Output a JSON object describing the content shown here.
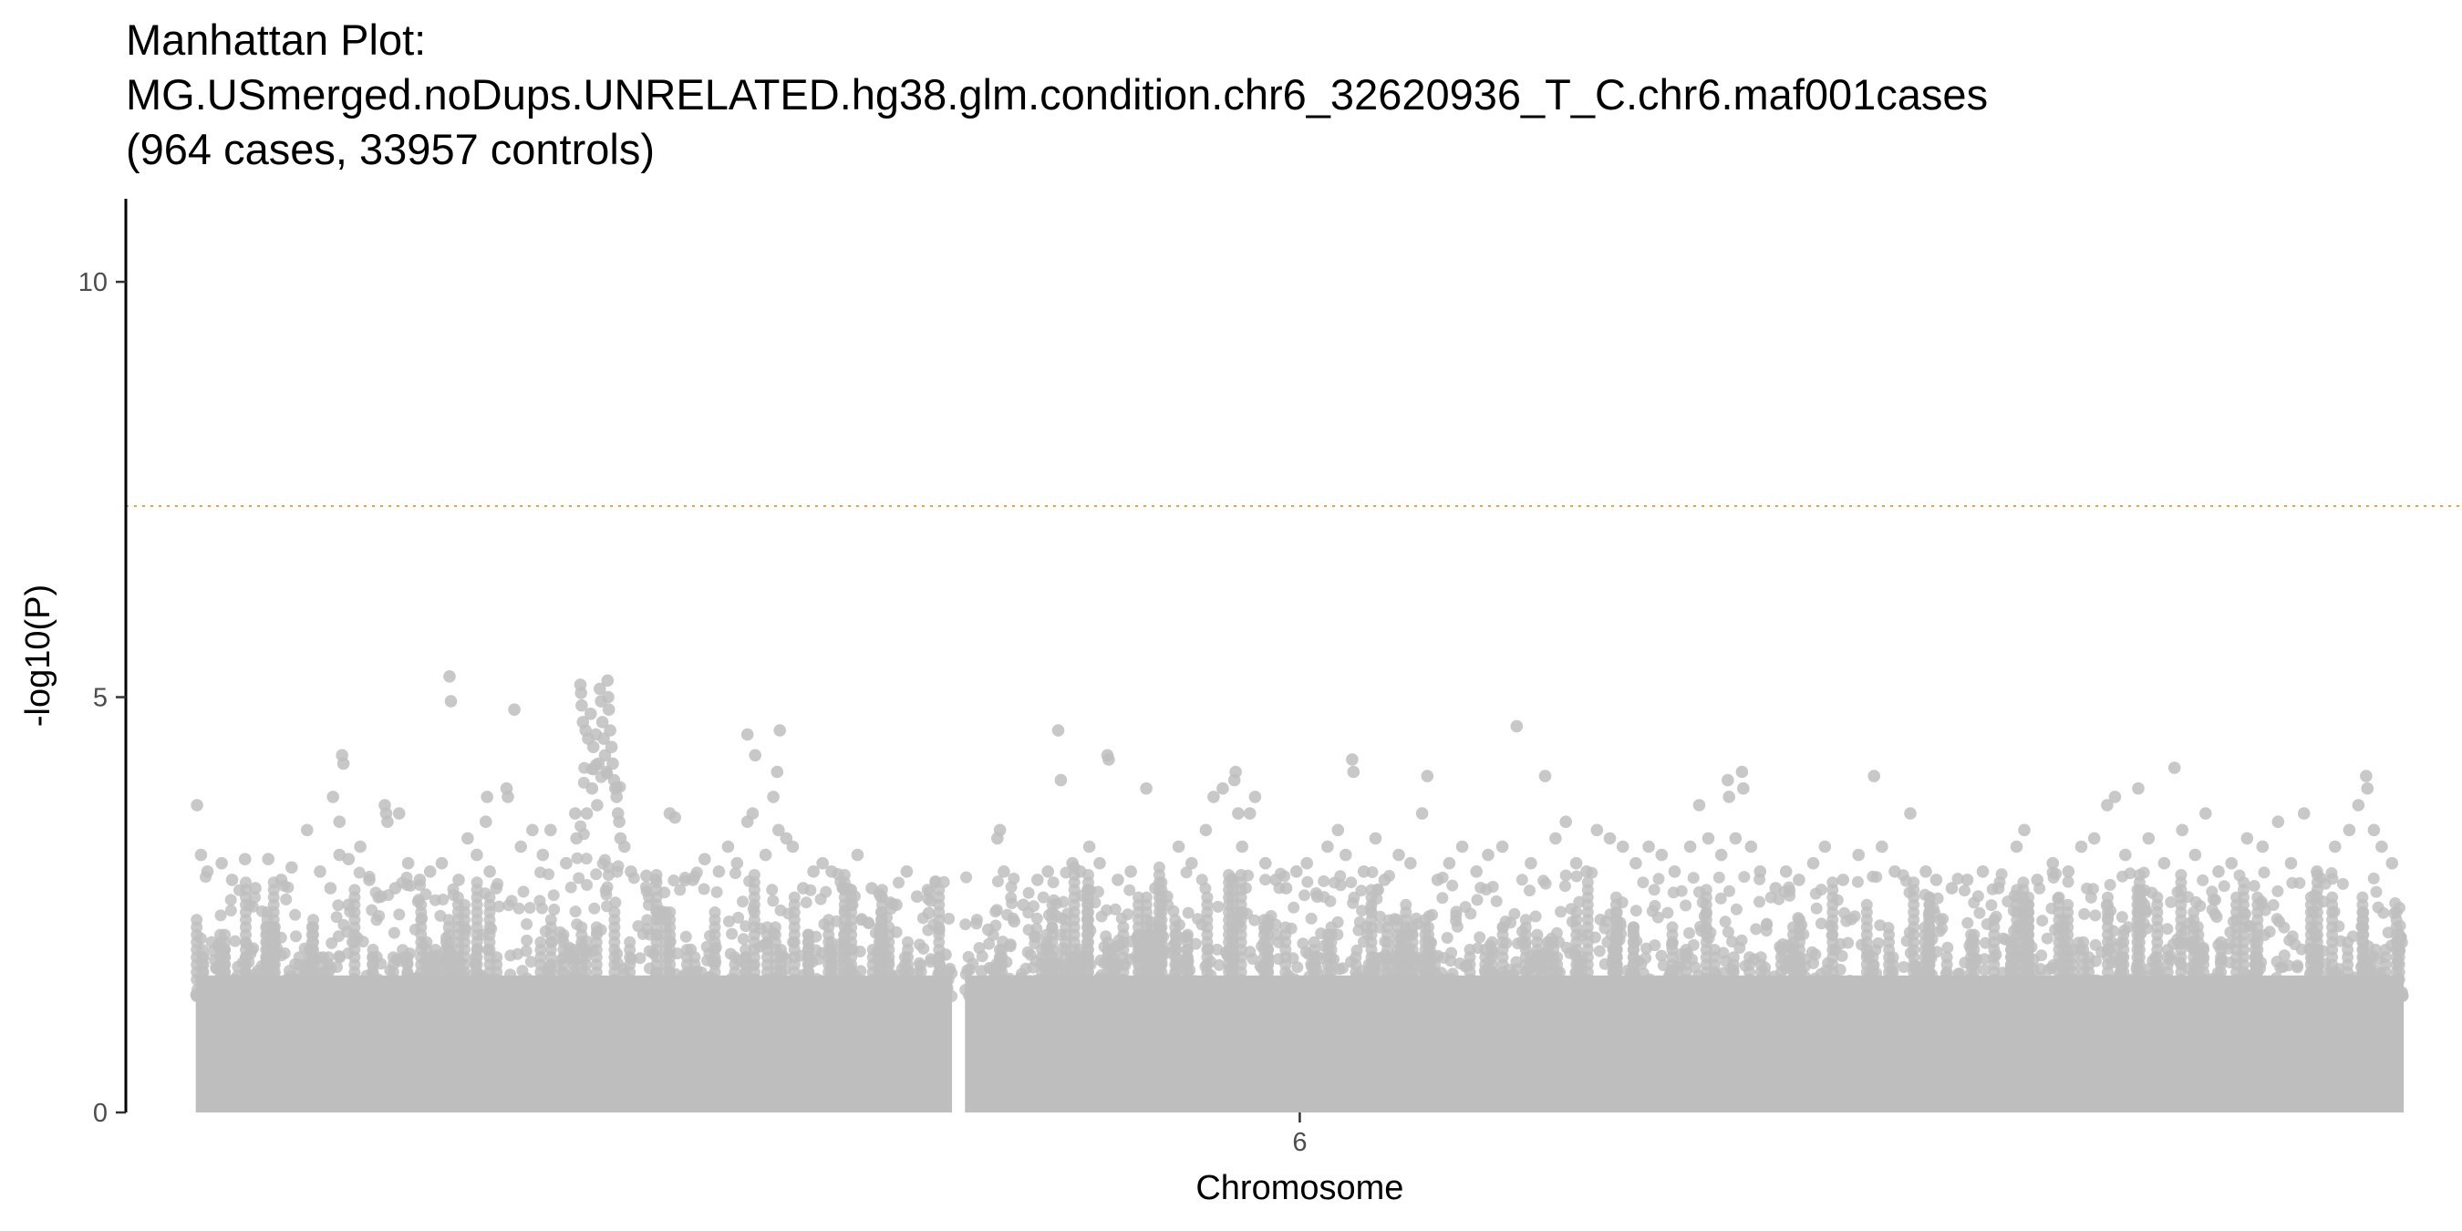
{
  "chart_data": {
    "type": "scatter",
    "title_lines": [
      "Manhattan Plot:",
      "MG.USmerged.noDups.UNRELATED.hg38.glm.condition.chr6_32620936_T_C.chr6.maf001cases",
      "(964 cases, 33957 controls)"
    ],
    "xlabel": "Chromosome",
    "ylabel": "-log10(P)",
    "x_tick_labels": [
      "6"
    ],
    "y_ticks": [
      0,
      5,
      10
    ],
    "y_tick_labels": [
      "0",
      "5",
      "10"
    ],
    "ylim": [
      0,
      11
    ],
    "xlim_mb": [
      -5.2,
      175.2
    ],
    "chromosome_range_mb": [
      0.2,
      170.7
    ],
    "gap_mb": [
      58.6,
      59.6
    ],
    "significance_threshold": 7.3,
    "point_color": "#bebebe",
    "threshold_color": "#e8a33d",
    "grid": false,
    "legend": "none",
    "points_mb": [
      [
        0.3,
        3.7
      ],
      [
        0.6,
        3.1
      ],
      [
        1.1,
        2.9
      ],
      [
        2.2,
        3.0
      ],
      [
        3.0,
        2.8
      ],
      [
        4.0,
        3.05
      ],
      [
        4.8,
        2.7
      ],
      [
        5.8,
        3.05
      ],
      [
        6.8,
        2.8
      ],
      [
        7.6,
        2.95
      ],
      [
        8.8,
        3.4
      ],
      [
        9.8,
        2.9
      ],
      [
        10.6,
        2.7
      ],
      [
        11.3,
        3.1
      ],
      [
        12.0,
        2.5
      ],
      [
        12.9,
        3.2
      ],
      [
        13.6,
        2.8
      ],
      [
        14.5,
        2.6
      ],
      [
        15.6,
        2.7
      ],
      [
        10.8,
        3.8
      ],
      [
        11.5,
        4.3
      ],
      [
        11.6,
        4.2
      ],
      [
        11.3,
        3.5
      ],
      [
        12.0,
        3.05
      ],
      [
        14.8,
        3.7
      ],
      [
        14.9,
        3.6
      ],
      [
        15.0,
        3.5
      ],
      [
        15.9,
        3.6
      ],
      [
        16.6,
        3.0
      ],
      [
        17.5,
        2.8
      ],
      [
        18.3,
        2.9
      ],
      [
        19.2,
        3.0
      ],
      [
        19.8,
        5.25
      ],
      [
        19.9,
        4.95
      ],
      [
        20.5,
        2.8
      ],
      [
        21.2,
        3.3
      ],
      [
        21.9,
        3.1
      ],
      [
        22.6,
        3.5
      ],
      [
        22.7,
        3.8
      ],
      [
        22.9,
        2.9
      ],
      [
        23.4,
        2.7
      ],
      [
        24.2,
        3.9
      ],
      [
        24.3,
        3.8
      ],
      [
        24.8,
        4.85
      ],
      [
        25.3,
        3.2
      ],
      [
        26.2,
        3.4
      ],
      [
        27.0,
        3.1
      ],
      [
        27.6,
        3.4
      ],
      [
        28.8,
        3.0
      ],
      [
        29.5,
        3.6
      ],
      [
        29.6,
        3.3
      ],
      [
        29.9,
        5.15
      ],
      [
        29.95,
        5.05
      ],
      [
        30.0,
        4.9
      ],
      [
        30.1,
        4.7
      ],
      [
        30.3,
        4.6
      ],
      [
        30.5,
        4.5
      ],
      [
        30.7,
        4.8
      ],
      [
        30.9,
        4.4
      ],
      [
        31.1,
        4.55
      ],
      [
        31.3,
        4.2
      ],
      [
        31.4,
        5.1
      ],
      [
        31.5,
        4.95
      ],
      [
        31.6,
        4.7
      ],
      [
        31.7,
        4.5
      ],
      [
        31.8,
        4.3
      ],
      [
        31.9,
        4.1
      ],
      [
        32.0,
        5.2
      ],
      [
        32.05,
        5.0
      ],
      [
        32.1,
        4.85
      ],
      [
        32.2,
        4.6
      ],
      [
        32.3,
        4.4
      ],
      [
        32.4,
        4.2
      ],
      [
        32.5,
        4.0
      ],
      [
        32.6,
        3.9
      ],
      [
        32.7,
        3.8
      ],
      [
        32.8,
        3.6
      ],
      [
        32.9,
        3.5
      ],
      [
        33.0,
        3.3
      ],
      [
        30.4,
        3.6
      ],
      [
        30.8,
        3.9
      ],
      [
        31.2,
        3.7
      ],
      [
        33.3,
        3.2
      ],
      [
        33.8,
        2.9
      ],
      [
        35.0,
        2.85
      ],
      [
        36.8,
        3.6
      ],
      [
        37.2,
        3.55
      ],
      [
        38.6,
        2.8
      ],
      [
        39.5,
        3.05
      ],
      [
        40.6,
        2.9
      ],
      [
        41.3,
        3.2
      ],
      [
        42.0,
        3.0
      ],
      [
        42.8,
        4.55
      ],
      [
        43.4,
        4.3
      ],
      [
        42.8,
        3.5
      ],
      [
        43.2,
        3.6
      ],
      [
        44.2,
        3.1
      ],
      [
        44.8,
        3.8
      ],
      [
        45.1,
        4.1
      ],
      [
        45.2,
        3.4
      ],
      [
        45.3,
        4.6
      ],
      [
        45.8,
        3.3
      ],
      [
        46.3,
        3.2
      ],
      [
        47.1,
        2.7
      ],
      [
        47.9,
        2.9
      ],
      [
        48.6,
        3.0
      ],
      [
        49.3,
        2.9
      ],
      [
        50.2,
        2.7
      ],
      [
        50.9,
        2.5
      ],
      [
        51.3,
        3.1
      ],
      [
        52.4,
        2.7
      ],
      [
        53.1,
        2.6
      ],
      [
        54.3,
        2.5
      ],
      [
        55.1,
        2.9
      ],
      [
        55.9,
        2.6
      ],
      [
        56.8,
        2.4
      ],
      [
        57.6,
        2.2
      ],
      [
        58.1,
        1.9
      ],
      [
        58.3,
        1.6
      ],
      [
        60.1,
        1.35
      ],
      [
        60.9,
        1.7
      ],
      [
        61.4,
        2.2
      ],
      [
        62.1,
        3.3
      ],
      [
        62.3,
        3.4
      ],
      [
        62.6,
        2.9
      ],
      [
        63.4,
        2.3
      ],
      [
        64.1,
        2.5
      ],
      [
        65.2,
        2.8
      ],
      [
        66.0,
        2.9
      ],
      [
        66.8,
        4.6
      ],
      [
        67.0,
        4.0
      ],
      [
        67.9,
        3.0
      ],
      [
        68.5,
        2.9
      ],
      [
        69.2,
        3.2
      ],
      [
        70.0,
        3.0
      ],
      [
        70.6,
        4.3
      ],
      [
        70.7,
        4.25
      ],
      [
        71.4,
        2.8
      ],
      [
        72.4,
        2.9
      ],
      [
        73.6,
        3.9
      ],
      [
        74.3,
        2.7
      ],
      [
        75.2,
        2.6
      ],
      [
        76.1,
        3.2
      ],
      [
        77.1,
        3.0
      ],
      [
        78.2,
        3.4
      ],
      [
        78.8,
        3.8
      ],
      [
        79.5,
        3.9
      ],
      [
        80.4,
        4.0
      ],
      [
        80.5,
        4.1
      ],
      [
        80.7,
        3.6
      ],
      [
        81.0,
        3.2
      ],
      [
        81.6,
        3.6
      ],
      [
        82.0,
        3.8
      ],
      [
        82.8,
        3.0
      ],
      [
        83.6,
        2.8
      ],
      [
        84.4,
        2.7
      ],
      [
        85.2,
        2.9
      ],
      [
        86.0,
        3.0
      ],
      [
        86.8,
        2.6
      ],
      [
        87.6,
        3.2
      ],
      [
        88.4,
        3.4
      ],
      [
        89.0,
        3.1
      ],
      [
        89.5,
        4.25
      ],
      [
        89.6,
        4.1
      ],
      [
        90.4,
        2.9
      ],
      [
        91.3,
        3.3
      ],
      [
        92.0,
        2.8
      ],
      [
        93.1,
        3.1
      ],
      [
        94.0,
        3.0
      ],
      [
        94.9,
        3.6
      ],
      [
        95.3,
        4.05
      ],
      [
        96.1,
        2.8
      ],
      [
        97.0,
        3.0
      ],
      [
        98.0,
        3.2
      ],
      [
        99.1,
        2.9
      ],
      [
        100.0,
        3.1
      ],
      [
        101.1,
        3.2
      ],
      [
        102.2,
        4.65
      ],
      [
        103.3,
        3.0
      ],
      [
        104.4,
        4.05
      ],
      [
        105.2,
        3.3
      ],
      [
        106.0,
        3.5
      ],
      [
        106.8,
        3.0
      ],
      [
        107.6,
        2.9
      ],
      [
        108.4,
        3.4
      ],
      [
        109.4,
        3.3
      ],
      [
        110.4,
        3.2
      ],
      [
        111.4,
        3.0
      ],
      [
        112.4,
        3.2
      ],
      [
        113.4,
        3.1
      ],
      [
        114.4,
        2.9
      ],
      [
        115.6,
        3.2
      ],
      [
        116.3,
        3.7
      ],
      [
        117.0,
        3.3
      ],
      [
        118.0,
        3.1
      ],
      [
        118.5,
        4.0
      ],
      [
        118.6,
        3.8
      ],
      [
        119.1,
        3.3
      ],
      [
        119.6,
        4.1
      ],
      [
        119.7,
        3.9
      ],
      [
        120.3,
        3.2
      ],
      [
        121.0,
        2.9
      ],
      [
        122.2,
        2.7
      ],
      [
        123.0,
        2.9
      ],
      [
        124.0,
        2.8
      ],
      [
        125.1,
        3.0
      ],
      [
        126.0,
        3.2
      ],
      [
        127.4,
        2.8
      ],
      [
        128.6,
        3.1
      ],
      [
        129.8,
        4.05
      ],
      [
        130.4,
        3.2
      ],
      [
        131.4,
        2.9
      ],
      [
        132.6,
        3.6
      ],
      [
        133.8,
        2.9
      ],
      [
        134.6,
        2.8
      ],
      [
        135.8,
        2.7
      ],
      [
        137.0,
        2.8
      ],
      [
        138.2,
        2.9
      ],
      [
        139.4,
        2.7
      ],
      [
        140.8,
        3.2
      ],
      [
        141.4,
        3.4
      ],
      [
        142.4,
        2.8
      ],
      [
        143.6,
        3.0
      ],
      [
        144.8,
        2.9
      ],
      [
        145.8,
        3.2
      ],
      [
        146.8,
        3.3
      ],
      [
        147.8,
        3.7
      ],
      [
        148.4,
        3.8
      ],
      [
        149.2,
        3.1
      ],
      [
        150.2,
        3.9
      ],
      [
        151.0,
        3.3
      ],
      [
        152.2,
        3.0
      ],
      [
        153.0,
        4.15
      ],
      [
        153.6,
        3.4
      ],
      [
        154.6,
        3.1
      ],
      [
        155.4,
        3.6
      ],
      [
        156.4,
        2.9
      ],
      [
        157.4,
        3.0
      ],
      [
        158.6,
        3.3
      ],
      [
        159.8,
        3.2
      ],
      [
        161.0,
        3.5
      ],
      [
        162.0,
        3.0
      ],
      [
        163.0,
        3.6
      ],
      [
        164.0,
        2.9
      ],
      [
        165.4,
        3.2
      ],
      [
        166.5,
        3.4
      ],
      [
        167.2,
        3.7
      ],
      [
        167.8,
        4.05
      ],
      [
        167.9,
        3.9
      ],
      [
        168.4,
        3.4
      ],
      [
        169.0,
        3.2
      ],
      [
        169.8,
        3.0
      ]
    ]
  }
}
